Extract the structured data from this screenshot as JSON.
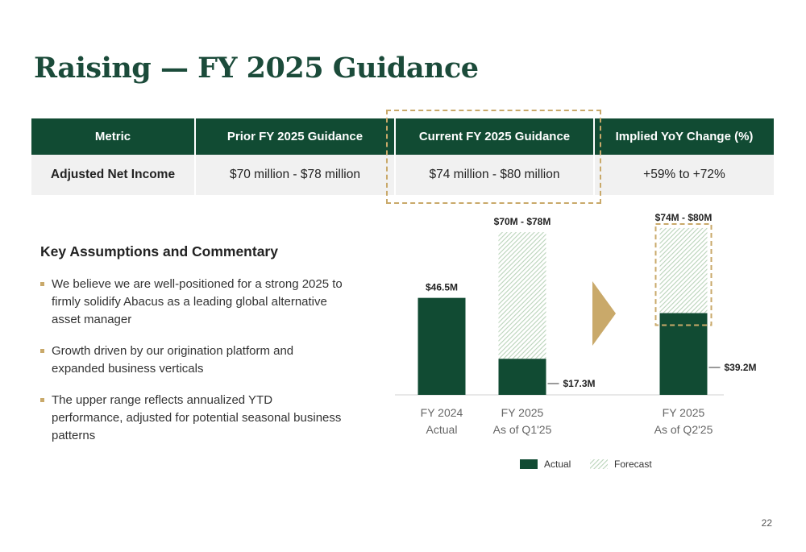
{
  "title": "Raising — FY 2025 Guidance",
  "table": {
    "headers": [
      "Metric",
      "Prior FY 2025 Guidance",
      "Current FY 2025 Guidance",
      "Implied YoY Change (%)"
    ],
    "row": [
      "Adjusted Net Income",
      "$70 million - $78 million",
      "$74 million - $80 million",
      "+59% to +72%"
    ]
  },
  "commentary": {
    "title": "Key Assumptions and Commentary",
    "bullets": [
      "We believe we are well-positioned for a strong 2025 to firmly solidify Abacus as a leading global alternative asset manager",
      "Growth driven by our origination platform and expanded business verticals",
      "The upper range reflects annualized YTD performance, adjusted for potential seasonal business patterns"
    ]
  },
  "chart_data": {
    "type": "bar",
    "stacked": true,
    "categories": [
      [
        "FY 2024",
        "Actual"
      ],
      [
        "FY 2025",
        "As of Q1'25"
      ],
      [
        "FY 2025",
        "As of Q2'25"
      ]
    ],
    "series": [
      {
        "name": "Actual",
        "values": [
          46.5,
          17.3,
          39.2
        ],
        "color": "#114b33"
      },
      {
        "name": "Forecast",
        "values": [
          0,
          60.7,
          40.8
        ],
        "color": "#c6dcc6"
      }
    ],
    "top_labels": [
      "$46.5M",
      "$70M - $78M",
      "$74M - $80M"
    ],
    "actual_labels": [
      "",
      "$17.3M",
      "$39.2M"
    ],
    "ylim": [
      0,
      85
    ],
    "legend_position": "bottom"
  },
  "colors": {
    "brand_green": "#114b33",
    "accent_gold": "#c9a96a",
    "title_green": "#1b4b3a"
  },
  "page_number": "22"
}
